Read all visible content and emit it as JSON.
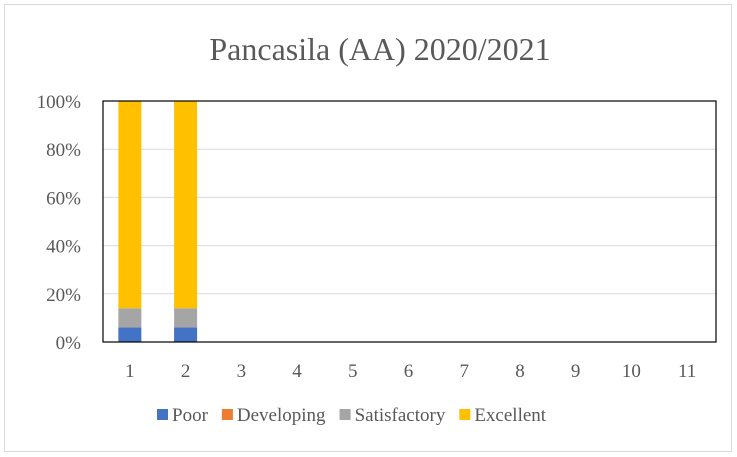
{
  "chart_data": {
    "type": "bar",
    "stacked": true,
    "percent": true,
    "title": "Pancasila (AA) 2020/2021",
    "categories": [
      "1",
      "2",
      "3",
      "4",
      "5",
      "6",
      "7",
      "8",
      "9",
      "10",
      "11"
    ],
    "y_ticks": [
      "0%",
      "20%",
      "40%",
      "60%",
      "80%",
      "100%"
    ],
    "ylim": [
      0,
      100
    ],
    "grid": true,
    "legend_position": "bottom",
    "series": [
      {
        "name": "Poor",
        "color": "#4472c4",
        "values": [
          6,
          6,
          0,
          0,
          0,
          0,
          0,
          0,
          0,
          0,
          0
        ]
      },
      {
        "name": "Developing",
        "color": "#ed7d31",
        "values": [
          0,
          0,
          0,
          0,
          0,
          0,
          0,
          0,
          0,
          0,
          0
        ]
      },
      {
        "name": "Satisfactory",
        "color": "#a5a5a5",
        "values": [
          8,
          8,
          0,
          0,
          0,
          0,
          0,
          0,
          0,
          0,
          0
        ]
      },
      {
        "name": "Excellent",
        "color": "#ffc000",
        "values": [
          86,
          86,
          0,
          0,
          0,
          0,
          0,
          0,
          0,
          0,
          0
        ]
      }
    ]
  }
}
